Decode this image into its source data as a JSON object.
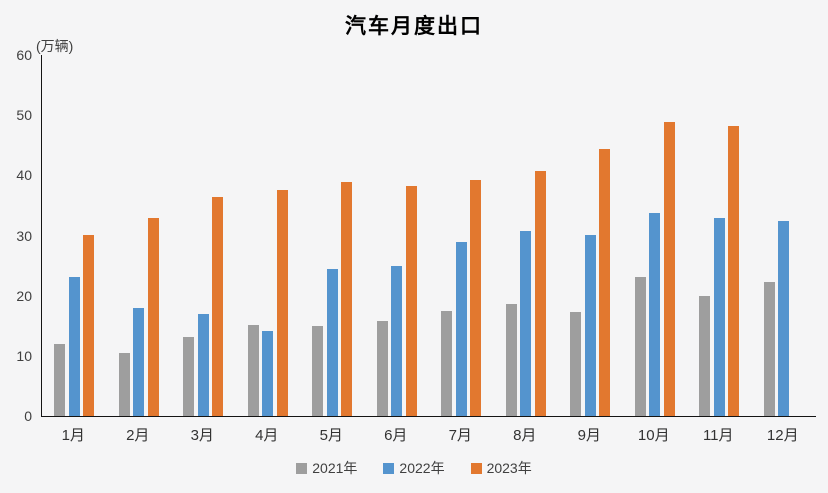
{
  "chart_data": {
    "type": "bar",
    "title": "汽车月度出口",
    "unit_label": "(万辆)",
    "categories": [
      "1月",
      "2月",
      "3月",
      "4月",
      "5月",
      "6月",
      "7月",
      "8月",
      "9月",
      "10月",
      "11月",
      "12月"
    ],
    "series": [
      {
        "name": "2021年",
        "color": "#9E9E9E",
        "values": [
          11.9,
          10.5,
          13.2,
          15.1,
          15.0,
          15.8,
          17.4,
          18.7,
          17.3,
          23.1,
          19.9,
          22.2
        ]
      },
      {
        "name": "2022年",
        "color": "#5494CE",
        "values": [
          23.1,
          18.0,
          17.0,
          14.1,
          24.5,
          24.9,
          28.9,
          30.8,
          30.1,
          33.7,
          32.9,
          32.4
        ]
      },
      {
        "name": "2023年",
        "color": "#E2782F",
        "values": [
          30.1,
          32.9,
          36.4,
          37.6,
          38.9,
          38.2,
          39.2,
          40.8,
          44.4,
          48.8,
          48.2,
          null
        ]
      }
    ],
    "ylim": [
      0,
      60
    ],
    "yticks": [
      0,
      10,
      20,
      30,
      40,
      50,
      60
    ],
    "grid": false,
    "legend_position": "bottom",
    "xlabel": "",
    "ylabel": "万辆"
  }
}
